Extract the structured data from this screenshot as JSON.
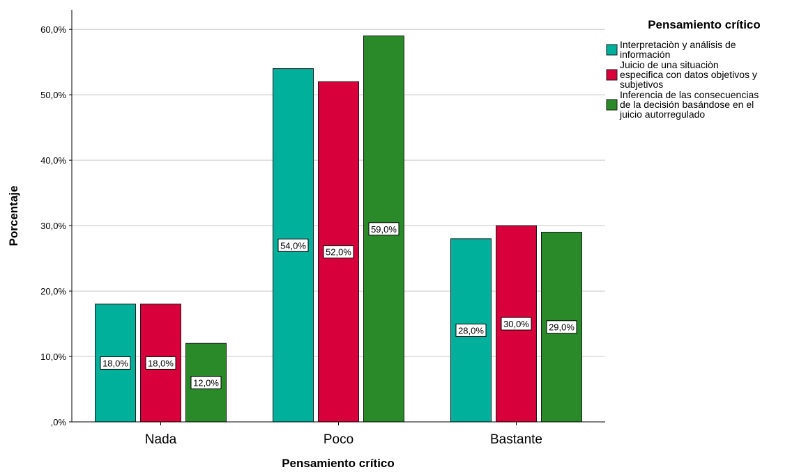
{
  "chart_data": {
    "type": "bar",
    "categories": [
      "Nada",
      "Poco",
      "Bastante"
    ],
    "xlabel": "Pensamiento crítico",
    "ylabel": "Porcentaje",
    "ylim": [
      0,
      63
    ],
    "yticks": [
      0,
      10,
      20,
      30,
      40,
      50,
      60
    ],
    "ytick_labels": [
      ",0%",
      "10,0%",
      "20,0%",
      "30,0%",
      "40,0%",
      "50,0%",
      "60,0%"
    ],
    "grid": true,
    "legend": {
      "title": "Pensamiento crítico",
      "placement": "top-right"
    },
    "series": [
      {
        "name": "Interpretaciòn y análisis de información",
        "name_lines": [
          "Interpretaciòn y análisis de",
          "información"
        ],
        "color": "#00b09b",
        "values": [
          18,
          54,
          28
        ],
        "labels": [
          "18,0%",
          "54,0%",
          "28,0%"
        ]
      },
      {
        "name": "Juicio de una situaciòn especifica con datos objetivos y subjetivos",
        "name_lines": [
          "Juicio de una situaciòn",
          "especifica con datos objetivos y",
          "subjetivos"
        ],
        "color": "#d8003a",
        "values": [
          18,
          52,
          30
        ],
        "labels": [
          "18,0%",
          "52,0%",
          "30,0%"
        ]
      },
      {
        "name": "Inferencia de las consecuencias de la decisión basándose en el juicio autorregulado",
        "name_lines": [
          "Inferencia de las consecuencias",
          "de la decisión basándose en el",
          "juicio autorregulado"
        ],
        "color": "#2a8a2a",
        "values": [
          12,
          59,
          29
        ],
        "labels": [
          "12,0%",
          "59,0%",
          "29,0%"
        ]
      }
    ]
  }
}
